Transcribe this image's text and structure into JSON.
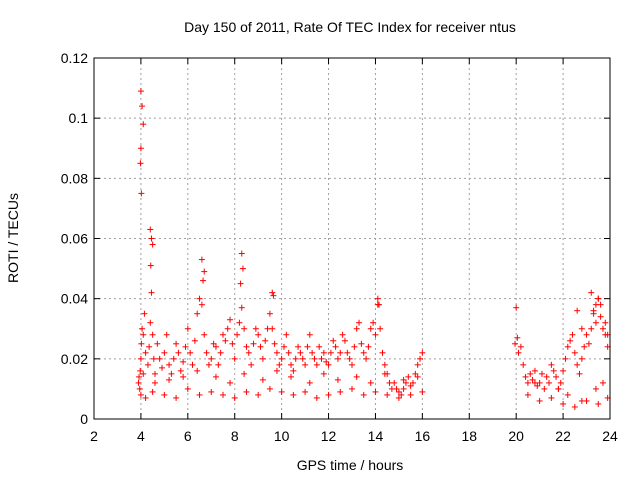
{
  "chart_data": {
    "type": "scatter",
    "title": "Day 150 of 2011, Rate Of TEC Index for receiver ntus",
    "xlabel": "GPS time / hours",
    "ylabel": "ROTI / TECUs",
    "xlim": [
      2,
      24
    ],
    "ylim": [
      0,
      0.12
    ],
    "xticks": [
      2,
      4,
      6,
      8,
      10,
      12,
      14,
      16,
      18,
      20,
      22,
      24
    ],
    "yticks": [
      0,
      0.02,
      0.04,
      0.06,
      0.08,
      0.1,
      0.12
    ],
    "ytick_labels": [
      "0",
      "0.02",
      "0.04",
      "0.06",
      "0.08",
      "0.1",
      "0.12"
    ],
    "grid": true,
    "marker": "+",
    "color": "#ff0000",
    "series": [
      {
        "x": [
          3.9,
          3.92,
          3.95,
          3.97,
          4.0,
          4.02,
          4.05,
          4.1,
          4.15,
          4.2,
          4.3,
          4.35,
          4.4,
          4.45,
          4.5,
          4.55,
          4.6,
          4.7,
          4.8,
          4.9,
          5.0,
          5.1,
          5.2,
          5.3,
          5.4,
          5.5,
          5.6,
          5.7,
          5.8,
          5.9,
          6.0,
          6.1,
          6.2,
          6.3,
          6.4,
          6.5,
          6.6,
          6.7,
          6.8,
          6.9,
          7.0,
          7.1,
          7.2,
          7.3,
          7.4,
          7.5,
          7.6,
          7.7,
          7.8,
          7.9,
          8.0,
          8.1,
          8.2,
          8.3,
          8.4,
          8.5,
          8.6,
          8.7,
          8.8,
          8.9,
          9.0,
          9.1,
          9.2,
          9.3,
          9.4,
          9.5,
          9.6,
          9.7,
          9.8,
          9.9,
          10.0,
          10.1,
          10.2,
          10.3,
          10.4,
          10.5,
          10.6,
          10.7,
          10.8,
          10.9,
          11.0,
          11.1,
          11.2,
          11.3,
          11.4,
          11.5,
          11.6,
          11.7,
          11.8,
          11.9,
          12.0,
          12.1,
          12.2,
          12.3,
          12.4,
          12.5,
          12.6,
          12.7,
          12.8,
          12.9,
          13.0,
          13.1,
          13.2,
          13.3,
          13.4,
          13.5,
          13.6,
          13.7,
          13.8,
          13.9,
          14.0,
          14.1,
          14.2,
          14.3,
          14.4,
          14.5,
          14.6,
          14.7,
          14.8,
          14.9,
          15.0,
          15.1,
          15.2,
          15.3,
          15.4,
          15.5,
          15.6,
          15.7,
          15.8,
          15.9,
          16.0,
          4.0,
          4.05,
          4.1,
          4.0,
          3.98,
          4.02,
          4.4,
          4.45,
          4.5,
          4.42,
          6.6,
          6.7,
          6.65,
          8.3,
          8.35,
          8.25,
          9.6,
          9.65,
          14.1,
          14.15,
          20.0,
          20.05,
          20.1,
          20.2,
          20.3,
          20.4,
          20.5,
          20.6,
          20.7,
          20.8,
          20.9,
          21.0,
          21.1,
          21.2,
          21.3,
          21.4,
          21.5,
          21.6,
          21.7,
          21.8,
          21.9,
          22.0,
          22.1,
          22.2,
          22.3,
          22.4,
          22.5,
          22.6,
          22.7,
          22.8,
          22.9,
          23.0,
          23.1,
          23.2,
          23.3,
          23.4,
          23.5,
          23.6,
          23.7,
          23.8,
          23.9,
          23.2,
          23.3,
          23.4,
          23.5,
          23.6,
          23.8,
          23.9,
          22.6,
          22.8,
          19.95,
          4.0,
          4.2,
          4.5,
          5.0,
          5.5,
          6.0,
          6.5,
          7.0,
          7.5,
          8.0,
          8.5,
          9.0,
          9.5,
          10.0,
          10.5,
          11.0,
          11.5,
          12.0,
          12.5,
          13.0,
          13.5,
          14.0,
          14.5,
          15.0,
          15.5,
          16.0,
          4.1,
          4.6,
          5.2,
          5.8,
          6.4,
          7.2,
          7.8,
          8.4,
          9.2,
          9.8,
          10.4,
          11.2,
          11.8,
          12.4,
          13.2,
          13.8,
          14.4,
          15.2,
          15.8,
          20.5,
          21.0,
          21.5,
          22.0,
          22.5,
          23.0,
          23.5,
          23.9,
          20.8,
          21.8,
          22.2,
          22.8,
          23.4,
          23.7
        ],
        "y": [
          0.012,
          0.014,
          0.01,
          0.016,
          0.02,
          0.025,
          0.03,
          0.028,
          0.035,
          0.022,
          0.018,
          0.024,
          0.032,
          0.042,
          0.028,
          0.02,
          0.015,
          0.025,
          0.02,
          0.017,
          0.022,
          0.028,
          0.018,
          0.015,
          0.02,
          0.025,
          0.022,
          0.016,
          0.019,
          0.024,
          0.03,
          0.022,
          0.018,
          0.026,
          0.035,
          0.04,
          0.038,
          0.028,
          0.022,
          0.018,
          0.02,
          0.025,
          0.024,
          0.018,
          0.022,
          0.028,
          0.026,
          0.03,
          0.033,
          0.025,
          0.02,
          0.028,
          0.032,
          0.037,
          0.03,
          0.024,
          0.022,
          0.018,
          0.025,
          0.03,
          0.028,
          0.024,
          0.02,
          0.026,
          0.03,
          0.035,
          0.03,
          0.025,
          0.022,
          0.018,
          0.02,
          0.024,
          0.028,
          0.022,
          0.018,
          0.016,
          0.02,
          0.024,
          0.022,
          0.02,
          0.018,
          0.024,
          0.028,
          0.022,
          0.02,
          0.018,
          0.024,
          0.02,
          0.022,
          0.019,
          0.018,
          0.022,
          0.026,
          0.024,
          0.02,
          0.022,
          0.028,
          0.026,
          0.022,
          0.02,
          0.018,
          0.024,
          0.03,
          0.032,
          0.025,
          0.022,
          0.02,
          0.024,
          0.03,
          0.032,
          0.028,
          0.038,
          0.03,
          0.022,
          0.018,
          0.015,
          0.012,
          0.01,
          0.012,
          0.01,
          0.009,
          0.008,
          0.01,
          0.012,
          0.014,
          0.011,
          0.012,
          0.015,
          0.018,
          0.02,
          0.022,
          0.109,
          0.104,
          0.098,
          0.09,
          0.085,
          0.075,
          0.063,
          0.06,
          0.058,
          0.051,
          0.053,
          0.049,
          0.046,
          0.055,
          0.05,
          0.045,
          0.042,
          0.041,
          0.04,
          0.038,
          0.037,
          0.027,
          0.022,
          0.024,
          0.018,
          0.014,
          0.012,
          0.015,
          0.013,
          0.016,
          0.011,
          0.012,
          0.015,
          0.01,
          0.014,
          0.012,
          0.018,
          0.016,
          0.014,
          0.01,
          0.012,
          0.016,
          0.02,
          0.024,
          0.026,
          0.028,
          0.022,
          0.018,
          0.015,
          0.02,
          0.024,
          0.028,
          0.025,
          0.03,
          0.035,
          0.038,
          0.04,
          0.034,
          0.03,
          0.028,
          0.024,
          0.042,
          0.036,
          0.032,
          0.04,
          0.038,
          0.032,
          0.028,
          0.036,
          0.03,
          0.025,
          0.008,
          0.007,
          0.009,
          0.008,
          0.007,
          0.01,
          0.008,
          0.009,
          0.008,
          0.007,
          0.009,
          0.008,
          0.01,
          0.009,
          0.008,
          0.009,
          0.007,
          0.008,
          0.009,
          0.01,
          0.008,
          0.009,
          0.008,
          0.007,
          0.008,
          0.009,
          0.015,
          0.012,
          0.013,
          0.014,
          0.016,
          0.014,
          0.012,
          0.015,
          0.013,
          0.016,
          0.014,
          0.012,
          0.015,
          0.013,
          0.014,
          0.012,
          0.015,
          0.013,
          0.014,
          0.008,
          0.006,
          0.007,
          0.005,
          0.004,
          0.006,
          0.005,
          0.007,
          0.012,
          0.01,
          0.008,
          0.006,
          0.01,
          0.012
        ]
      }
    ]
  }
}
